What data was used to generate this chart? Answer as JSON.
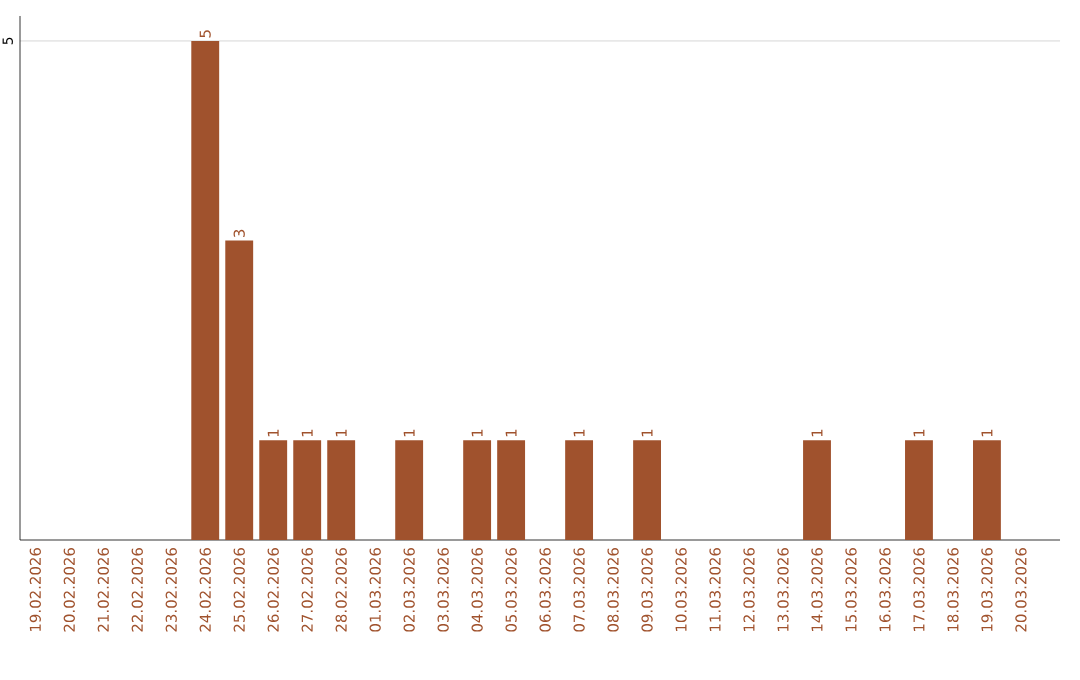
{
  "chart_data": {
    "type": "bar",
    "categories": [
      "19.02.2026",
      "20.02.2026",
      "21.02.2026",
      "22.02.2026",
      "23.02.2026",
      "24.02.2026",
      "25.02.2026",
      "26.02.2026",
      "27.02.2026",
      "28.02.2026",
      "01.03.2026",
      "02.03.2026",
      "03.03.2026",
      "04.03.2026",
      "05.03.2026",
      "06.03.2026",
      "07.03.2026",
      "08.03.2026",
      "09.03.2026",
      "10.03.2026",
      "11.03.2026",
      "12.03.2026",
      "13.03.2026",
      "14.03.2026",
      "15.03.2026",
      "16.03.2026",
      "17.03.2026",
      "18.03.2026",
      "19.03.2026",
      "20.03.2026"
    ],
    "values": [
      0,
      0,
      0,
      0,
      0,
      5,
      3,
      1,
      1,
      1,
      0,
      1,
      0,
      1,
      1,
      0,
      1,
      0,
      1,
      0,
      0,
      0,
      0,
      1,
      0,
      0,
      1,
      0,
      1,
      0
    ],
    "value_labels": [
      null,
      null,
      null,
      null,
      null,
      "5",
      "3",
      "1",
      "1",
      "1",
      null,
      "1",
      null,
      "1",
      "1",
      null,
      "1",
      null,
      "1",
      null,
      null,
      null,
      null,
      "1",
      null,
      null,
      "1",
      null,
      "1",
      null
    ],
    "color": "#a0522d",
    "ylim": [
      0,
      5.25
    ],
    "yticks": [
      5
    ],
    "grid": "y"
  }
}
